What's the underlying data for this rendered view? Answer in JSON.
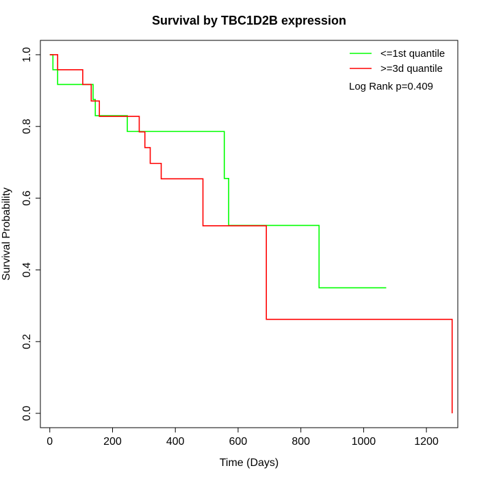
{
  "chart_data": {
    "type": "line",
    "title": "Survival by TBC1D2B expression",
    "xlabel": "Time (Days)",
    "ylabel": "Survival Probability",
    "xlim": [
      -30,
      1300
    ],
    "ylim": [
      -0.04,
      1.04
    ],
    "x_ticks": [
      0,
      200,
      400,
      600,
      800,
      1000,
      1200
    ],
    "y_ticks": [
      0.0,
      0.2,
      0.4,
      0.6,
      0.8,
      1.0
    ],
    "x_tick_labels": [
      "0",
      "200",
      "400",
      "600",
      "800",
      "1000",
      "1200"
    ],
    "y_tick_labels": [
      "0.0",
      "0.2",
      "0.4",
      "0.6",
      "0.8",
      "1.0"
    ],
    "legend_position": "top-right",
    "annotation": "Log Rank p=0.409",
    "grid": false,
    "series": [
      {
        "name": "<=1st quantile",
        "color": "#00ff00",
        "steps": [
          [
            0,
            1.0
          ],
          [
            10,
            0.958
          ],
          [
            25,
            0.917
          ],
          [
            138,
            0.875
          ],
          [
            145,
            0.83
          ],
          [
            247,
            0.786
          ],
          [
            556,
            0.655
          ],
          [
            570,
            0.524
          ],
          [
            858,
            0.35
          ],
          [
            1072,
            0.35
          ]
        ]
      },
      {
        "name": ">=3d quantile",
        "color": "#ff0000",
        "steps": [
          [
            0,
            1.0
          ],
          [
            25,
            0.958
          ],
          [
            105,
            0.917
          ],
          [
            132,
            0.871
          ],
          [
            158,
            0.828
          ],
          [
            285,
            0.785
          ],
          [
            303,
            0.741
          ],
          [
            320,
            0.697
          ],
          [
            355,
            0.654
          ],
          [
            488,
            0.523
          ],
          [
            690,
            0.262
          ],
          [
            1282,
            0.262
          ],
          [
            1282,
            0.0
          ]
        ]
      }
    ]
  }
}
